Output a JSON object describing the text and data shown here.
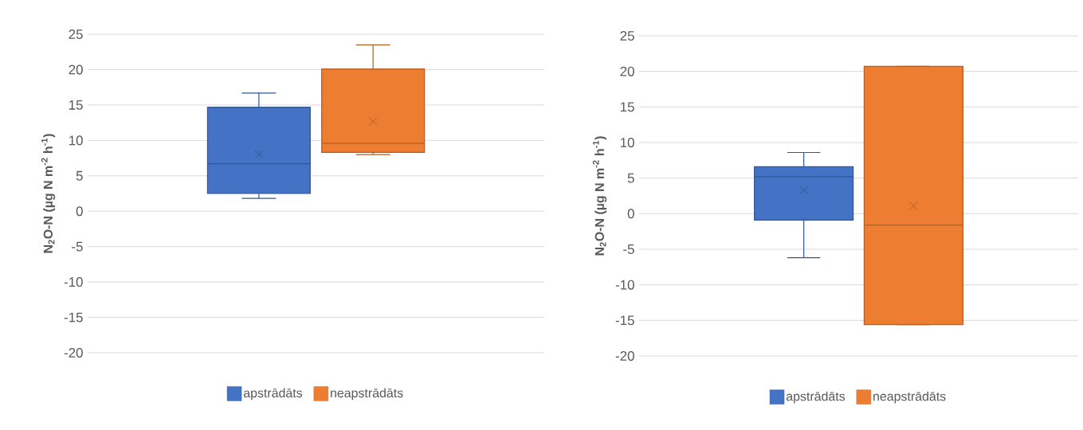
{
  "chart_data": [
    {
      "type": "box",
      "ylabel": "N$_{2}$O-N (µg N m$^{-2}$ h$^{-1}$)",
      "categories": [
        null
      ],
      "ylim": [
        -20,
        25
      ],
      "yticks": [
        -20,
        -15,
        -10,
        -5,
        0,
        5,
        10,
        15,
        20,
        25
      ],
      "grid": "y",
      "legend": "bottom",
      "series": [
        {
          "name": "apstrādāts",
          "color": "#4472c4",
          "boxes": [
            {
              "low": 1.8,
              "q1": 2.5,
              "median": 6.7,
              "q3": 14.7,
              "high": 16.7,
              "mean": 8.0
            }
          ]
        },
        {
          "name": "neapstrādāts",
          "color": "#ed7d31",
          "boxes": [
            {
              "low": 8.0,
              "q1": 8.3,
              "median": 9.6,
              "q3": 20.1,
              "high": 23.5,
              "mean": 12.7
            }
          ]
        }
      ]
    },
    {
      "type": "box",
      "ylabel": "N$_{2}$O-N (µg N m$^{-2}$ h$^{-1}$)",
      "categories": [
        null
      ],
      "ylim": [
        -20,
        25
      ],
      "yticks": [
        -20,
        -15,
        -10,
        -5,
        0,
        5,
        10,
        15,
        20,
        25
      ],
      "grid": "y",
      "legend": "bottom",
      "series": [
        {
          "name": "apstrādāts",
          "color": "#4472c4",
          "boxes": [
            {
              "low": -6.2,
              "q1": -0.9,
              "median": 5.2,
              "q3": 6.6,
              "high": 8.6,
              "mean": 3.3
            }
          ]
        },
        {
          "name": "neapstrādāts",
          "color": "#ed7d31",
          "boxes": [
            {
              "low": -15.6,
              "q1": -15.6,
              "median": -1.6,
              "q3": 20.7,
              "high": 20.7,
              "mean": 1.1
            }
          ]
        }
      ]
    }
  ]
}
